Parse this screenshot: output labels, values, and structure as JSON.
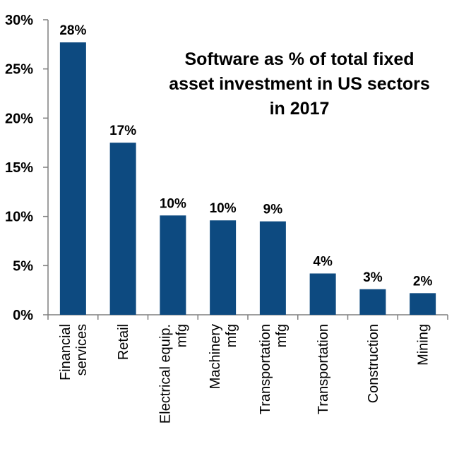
{
  "chart_data": {
    "type": "bar",
    "title_lines": [
      "Software as % of total fixed",
      "asset investment in US sectors",
      "in 2017"
    ],
    "categories": [
      [
        "Financial",
        "services"
      ],
      [
        "Retail"
      ],
      [
        "Electrical equip.",
        "mfg"
      ],
      [
        "Machinery",
        "mfg"
      ],
      [
        "Transportation",
        "mfg"
      ],
      [
        "Transportation"
      ],
      [
        "Construction"
      ],
      [
        "Mining"
      ]
    ],
    "values": [
      27.7,
      17.5,
      10.1,
      9.6,
      9.5,
      4.2,
      2.6,
      2.2
    ],
    "data_labels": [
      "28%",
      "17%",
      "10%",
      "10%",
      "9%",
      "4%",
      "3%",
      "2%"
    ],
    "yticks": [
      "0%",
      "5%",
      "10%",
      "15%",
      "20%",
      "25%",
      "30%"
    ],
    "ylim": [
      0,
      30
    ],
    "xlabel": "",
    "ylabel": "",
    "grid": false,
    "bar_color": "#0d4a80",
    "axis_color": "#7f7f7f"
  }
}
